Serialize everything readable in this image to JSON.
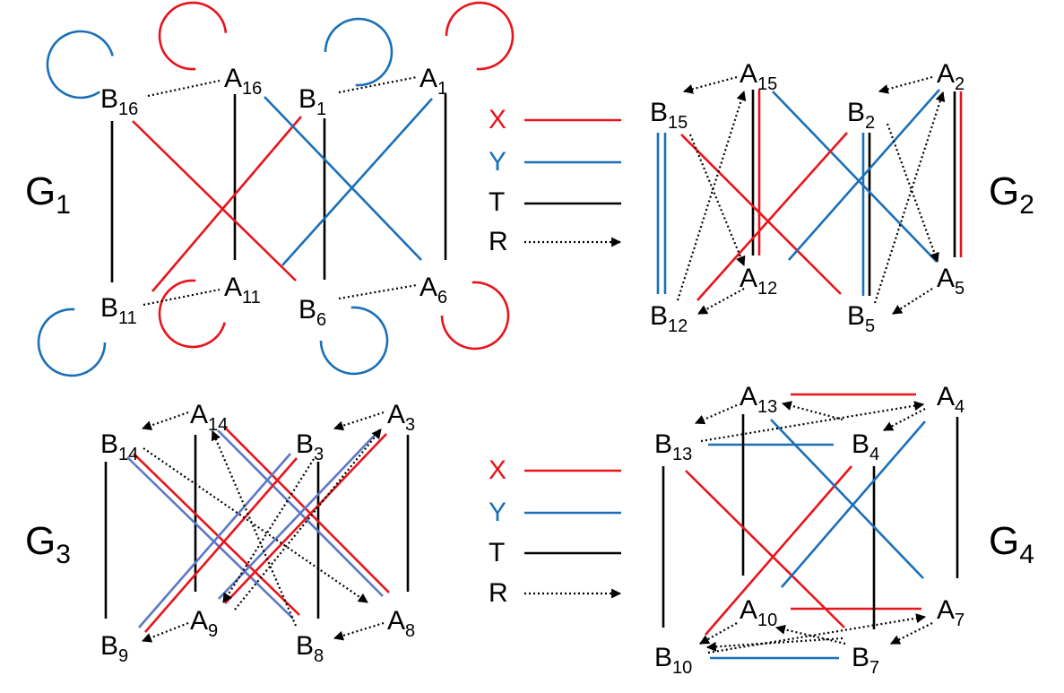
{
  "colors": {
    "X": "#e8141b",
    "Y": "#1a6fb8",
    "Y_light": "#5b78c6",
    "T": "#000000",
    "R": "#000000"
  },
  "legends": [
    {
      "items": [
        {
          "label": "X"
        },
        {
          "label": "Y"
        },
        {
          "label": "T"
        },
        {
          "label": "R"
        }
      ]
    },
    {
      "items": [
        {
          "label": "X"
        },
        {
          "label": "Y"
        },
        {
          "label": "T"
        },
        {
          "label": "R"
        }
      ]
    }
  ],
  "g1": {
    "label": {
      "letter": "G",
      "sub": "1"
    },
    "nodes": [
      {
        "letter": "B",
        "sub": "16"
      },
      {
        "letter": "A",
        "sub": "16"
      },
      {
        "letter": "B",
        "sub": "1"
      },
      {
        "letter": "A",
        "sub": "1"
      },
      {
        "letter": "B",
        "sub": "11"
      },
      {
        "letter": "A",
        "sub": "11"
      },
      {
        "letter": "B",
        "sub": "6"
      },
      {
        "letter": "A",
        "sub": "6"
      }
    ]
  },
  "g2": {
    "label": {
      "letter": "G",
      "sub": "2"
    },
    "nodes": [
      {
        "letter": "A",
        "sub": "15"
      },
      {
        "letter": "A",
        "sub": "2"
      },
      {
        "letter": "B",
        "sub": "15"
      },
      {
        "letter": "B",
        "sub": "2"
      },
      {
        "letter": "A",
        "sub": "12"
      },
      {
        "letter": "A",
        "sub": "5"
      },
      {
        "letter": "B",
        "sub": "12"
      },
      {
        "letter": "B",
        "sub": "5"
      }
    ]
  },
  "g3": {
    "label": {
      "letter": "G",
      "sub": "3"
    },
    "nodes": [
      {
        "letter": "A",
        "sub": "14"
      },
      {
        "letter": "A",
        "sub": "3"
      },
      {
        "letter": "B",
        "sub": "14"
      },
      {
        "letter": "B",
        "sub": "3"
      },
      {
        "letter": "A",
        "sub": "9"
      },
      {
        "letter": "A",
        "sub": "8"
      },
      {
        "letter": "B",
        "sub": "9"
      },
      {
        "letter": "B",
        "sub": "8"
      }
    ]
  },
  "g4": {
    "label": {
      "letter": "G",
      "sub": "4"
    },
    "nodes": [
      {
        "letter": "A",
        "sub": "13"
      },
      {
        "letter": "A",
        "sub": "4"
      },
      {
        "letter": "B",
        "sub": "13"
      },
      {
        "letter": "B",
        "sub": "4"
      },
      {
        "letter": "A",
        "sub": "10"
      },
      {
        "letter": "A",
        "sub": "7"
      },
      {
        "letter": "B",
        "sub": "10"
      },
      {
        "letter": "B",
        "sub": "7"
      }
    ]
  }
}
